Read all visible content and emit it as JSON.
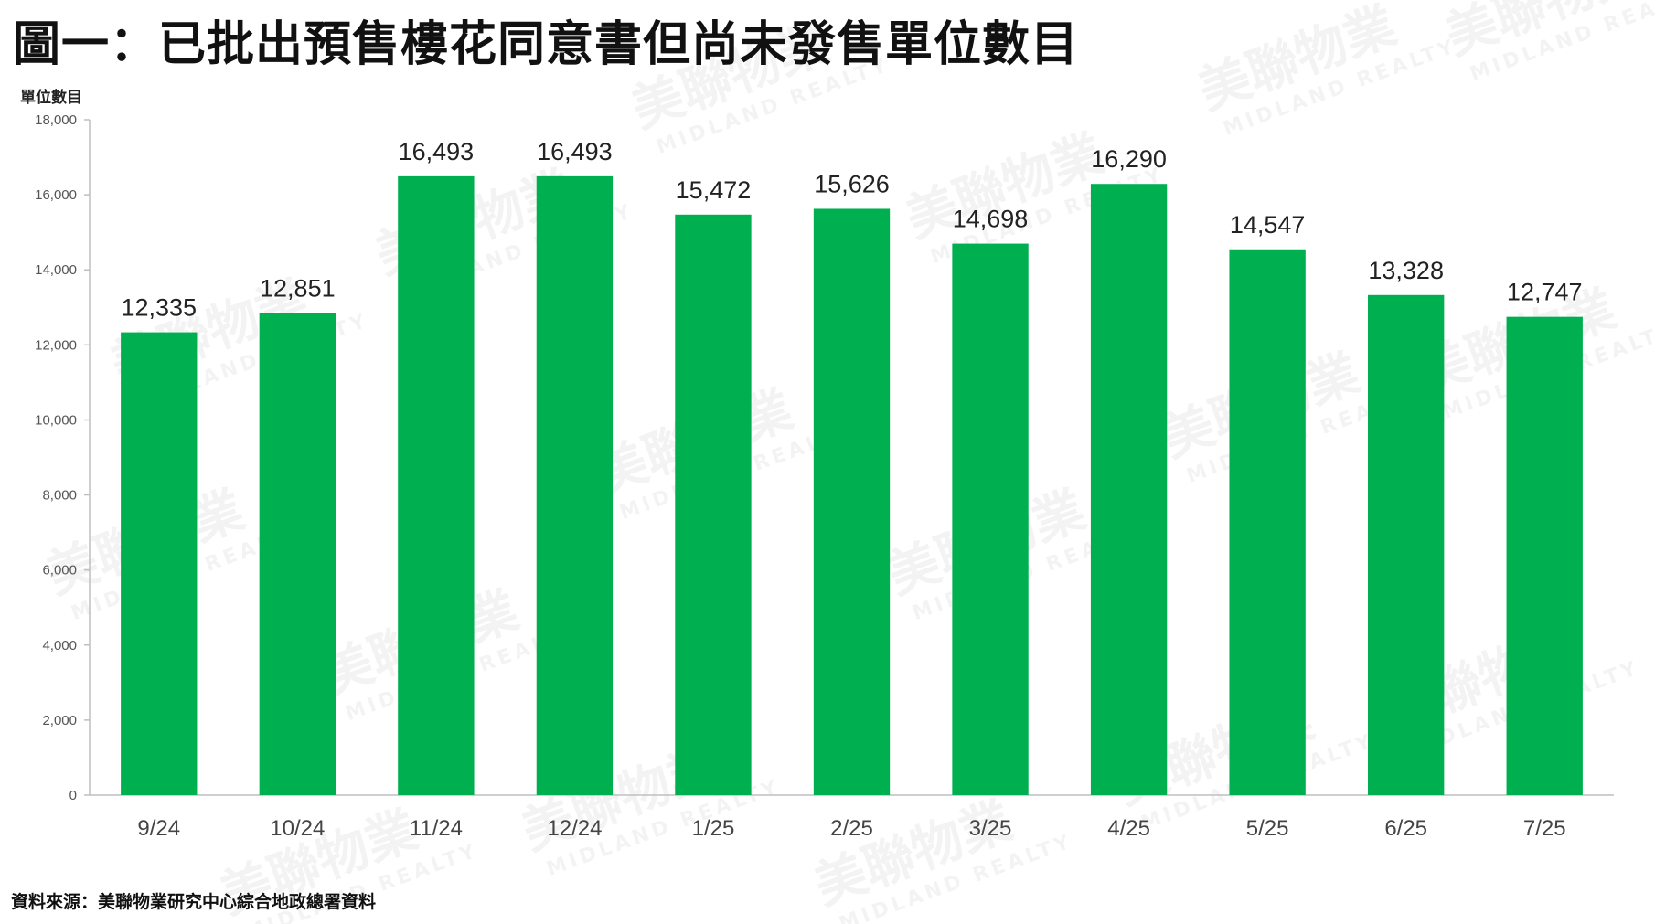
{
  "title": "圖一：已批出預售樓花同意書但尚未發售單位數目",
  "source": "資料來源：美聯物業研究中心綜合地政總署資料",
  "watermark": {
    "text_cn": "美聯物業",
    "text_en": "MIDLAND REALTY"
  },
  "colors": {
    "bar": "#00B050",
    "axis": "#BFBFBF"
  },
  "chart_data": {
    "type": "bar",
    "title": "圖一：已批出預售樓花同意書但尚未發售單位數目",
    "ylabel": "單位數目",
    "xlabel": "",
    "categories": [
      "9/24",
      "10/24",
      "11/24",
      "12/24",
      "1/25",
      "2/25",
      "3/25",
      "4/25",
      "5/25",
      "6/25",
      "7/25"
    ],
    "values": [
      12335,
      12851,
      16493,
      16493,
      15472,
      15626,
      14698,
      16290,
      14547,
      13328,
      12747
    ],
    "ylim": [
      0,
      18000
    ],
    "yticks": [
      0,
      2000,
      4000,
      6000,
      8000,
      10000,
      12000,
      14000,
      16000,
      18000
    ],
    "grid": false,
    "legend": "none",
    "data_labels": true
  }
}
